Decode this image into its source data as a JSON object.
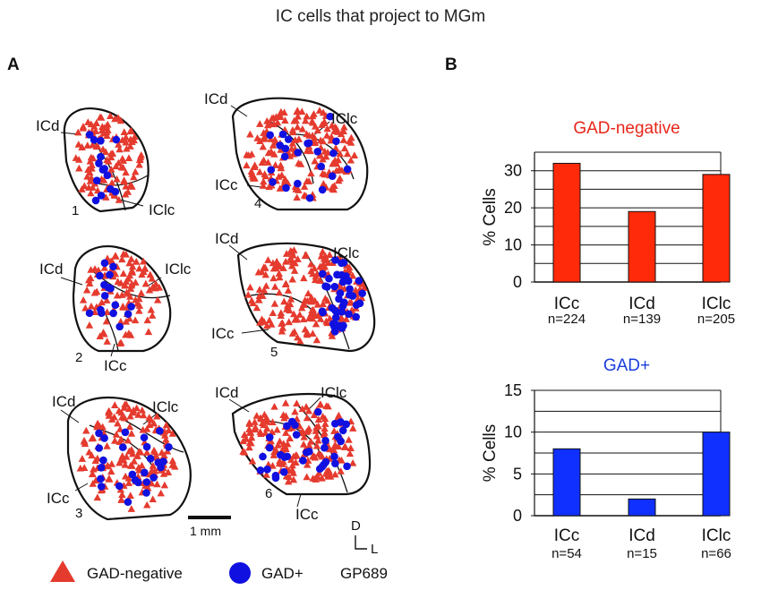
{
  "figure": {
    "title": "IC cells that project to MGm",
    "panel_a": "A",
    "panel_b": "B",
    "scale_bar": "1 mm",
    "orientation": {
      "dorsal": "D",
      "lateral": "L"
    },
    "legend": {
      "gad_negative": "GAD-negative",
      "gad_positive": "GAD+",
      "case_id": "GP689"
    },
    "colors": {
      "gad_negative": "#e53a2e",
      "gad_positive": "#1010e0",
      "bar_neg": "#ff2a0a",
      "bar_pos": "#1030ff"
    },
    "sections": [
      {
        "number": "1",
        "labels": [
          "ICd",
          "IClc"
        ]
      },
      {
        "number": "2",
        "labels": [
          "ICd",
          "IClc",
          "ICc"
        ]
      },
      {
        "number": "3",
        "labels": [
          "ICd",
          "IClc",
          "ICc"
        ]
      },
      {
        "number": "4",
        "labels": [
          "ICd",
          "IClc",
          "ICc"
        ]
      },
      {
        "number": "5",
        "labels": [
          "ICd",
          "IClc",
          "ICc"
        ]
      },
      {
        "number": "6",
        "labels": [
          "ICd",
          "IClc",
          "ICc"
        ]
      }
    ]
  },
  "chart_data": [
    {
      "type": "bar",
      "title": "GAD-negative",
      "ylabel": "% Cells",
      "xlabel": "",
      "categories": [
        "ICc",
        "ICd",
        "IClc"
      ],
      "n_labels": [
        "n=224",
        "n=139",
        "n=205"
      ],
      "values": [
        32,
        19,
        29
      ],
      "ylim": [
        0,
        35
      ],
      "yticks": [
        0,
        10,
        20,
        30
      ],
      "grid": true
    },
    {
      "type": "bar",
      "title": "GAD+",
      "ylabel": "% Cells",
      "xlabel": "",
      "categories": [
        "ICc",
        "ICd",
        "IClc"
      ],
      "n_labels": [
        "n=54",
        "n=15",
        "n=66"
      ],
      "values": [
        8,
        2,
        10
      ],
      "ylim": [
        0,
        15
      ],
      "yticks": [
        0,
        5,
        10,
        15
      ],
      "grid": true
    }
  ]
}
